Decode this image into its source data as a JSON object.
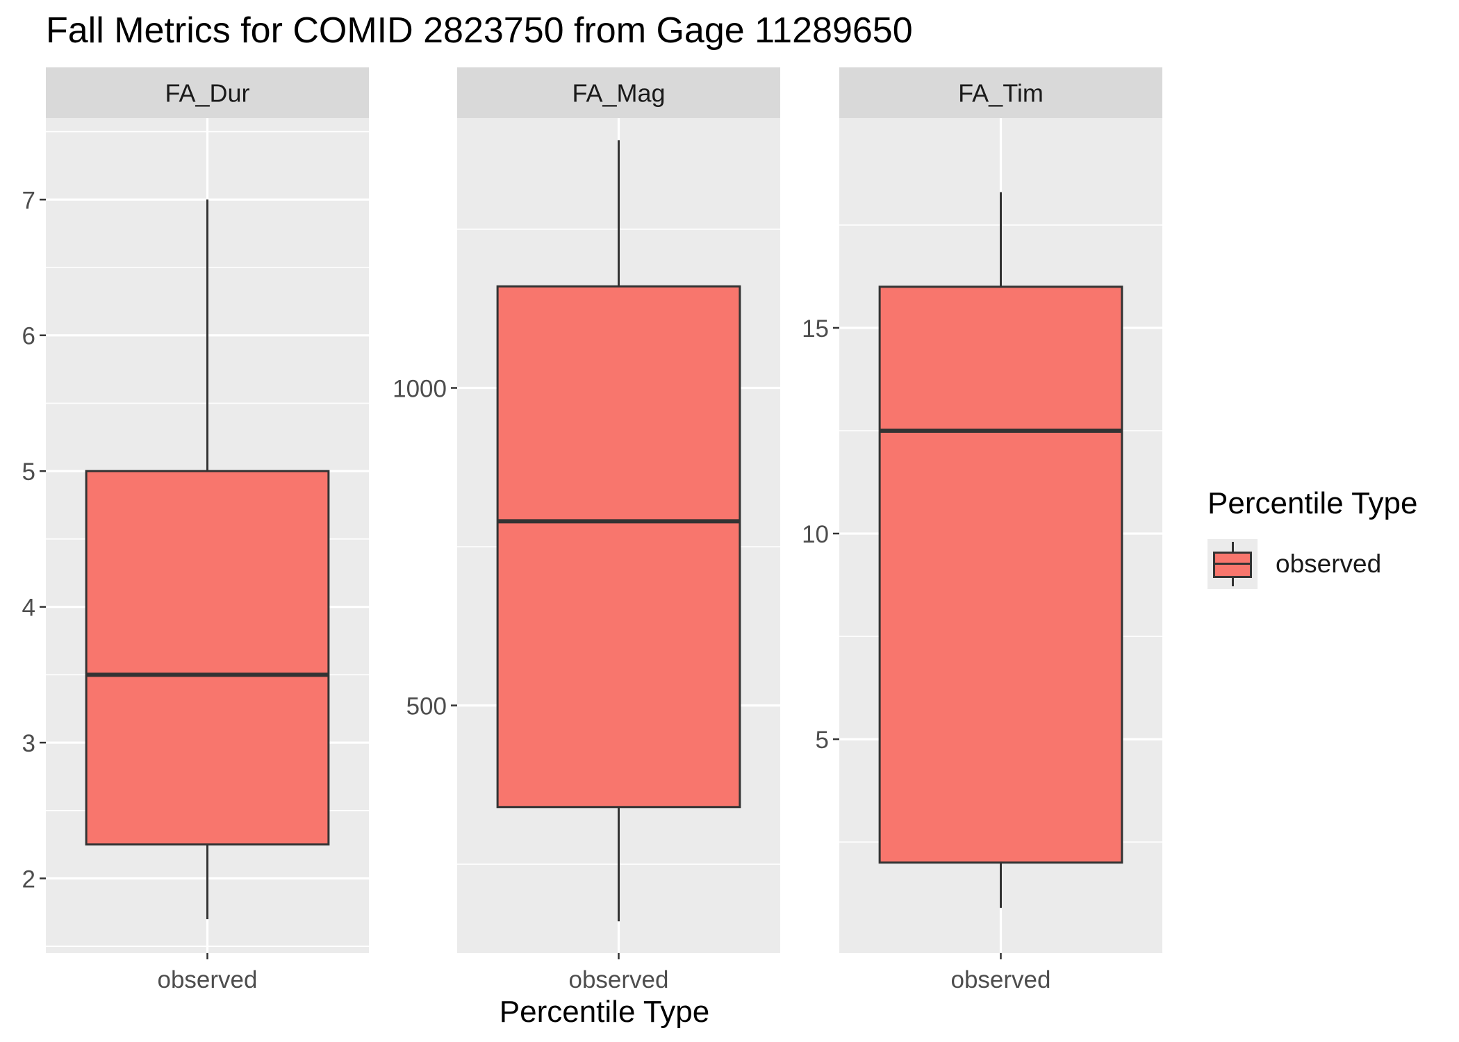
{
  "chart_data": {
    "type": "box",
    "title": "Fall Metrics for COMID 2823750 from Gage 11289650",
    "xlabel": "Percentile Type",
    "ylabel": "",
    "facets": [
      {
        "name": "FA_Dur",
        "categories": [
          "observed"
        ],
        "ylim": [
          1.45,
          7.6
        ],
        "y_ticks": [
          2,
          3,
          4,
          5,
          6,
          7
        ],
        "boxes": [
          {
            "category": "observed",
            "min": 1.7,
            "q1": 2.25,
            "median": 3.5,
            "q3": 5.0,
            "max": 7.0
          }
        ]
      },
      {
        "name": "FA_Mag",
        "categories": [
          "observed"
        ],
        "ylim": [
          110,
          1425
        ],
        "y_ticks": [
          500,
          1000
        ],
        "boxes": [
          {
            "category": "observed",
            "min": 160,
            "q1": 340,
            "median": 790,
            "q3": 1160,
            "max": 1390
          }
        ]
      },
      {
        "name": "FA_Tim",
        "categories": [
          "observed"
        ],
        "ylim": [
          -0.2,
          20.1
        ],
        "y_ticks": [
          5,
          10,
          15
        ],
        "boxes": [
          {
            "category": "observed",
            "min": 0.9,
            "q1": 2.0,
            "median": 12.5,
            "q3": 16.0,
            "max": 18.3
          }
        ]
      }
    ],
    "legend": {
      "title": "Percentile Type",
      "entries": [
        {
          "label": "observed",
          "color": "#F8766D"
        }
      ],
      "placement": "right"
    },
    "grid": true,
    "colors": {
      "fill": "#F8766D",
      "outline": "#333333",
      "panel_bg": "#EBEBEB",
      "strip_bg": "#D9D9D9",
      "grid": "#FFFFFF"
    }
  }
}
